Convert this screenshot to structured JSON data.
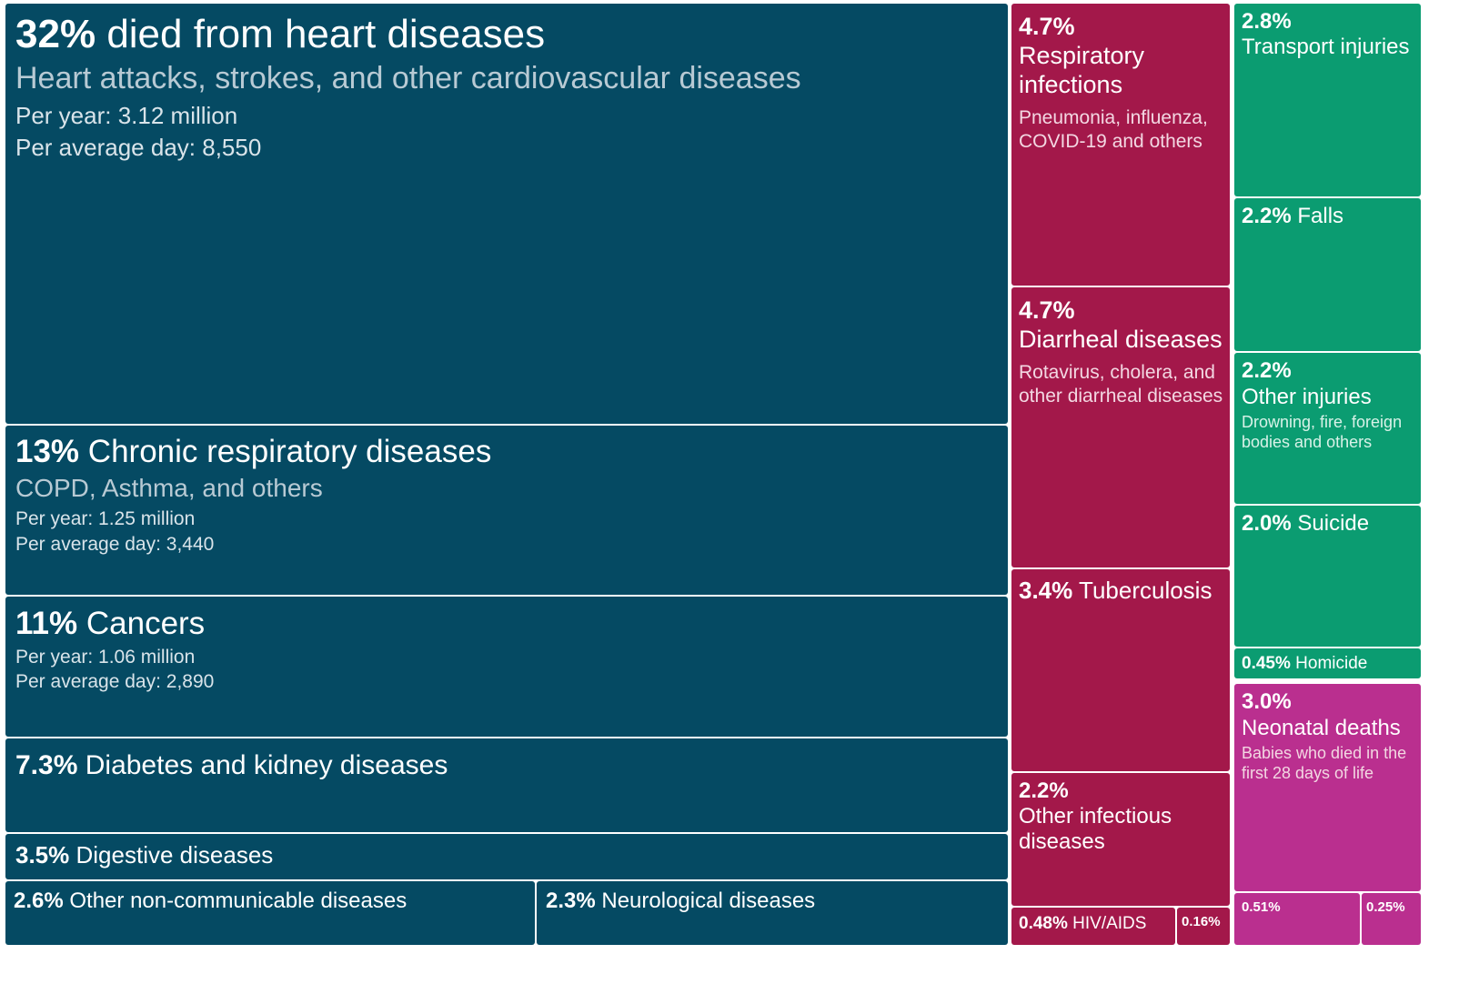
{
  "chart_data": {
    "type": "treemap",
    "title": "",
    "groups": [
      {
        "group": "non-communicable",
        "color": "#054a63",
        "items": [
          {
            "pct": "32%",
            "label": "died from heart diseases",
            "subtitle": "Heart attacks, strokes, and other cardiovascular diseases",
            "per_year": "Per year: 3.12 million",
            "per_day": "Per average day: 8,550"
          },
          {
            "pct": "13%",
            "label": "Chronic respiratory diseases",
            "subtitle": "COPD, Asthma, and others",
            "per_year": "Per year: 1.25 million",
            "per_day": "Per average day: 3,440"
          },
          {
            "pct": "11%",
            "label": "Cancers",
            "per_year": "Per year: 1.06 million",
            "per_day": "Per average day: 2,890"
          },
          {
            "pct": "7.3%",
            "label": "Diabetes and kidney diseases"
          },
          {
            "pct": "3.5%",
            "label": "Digestive diseases"
          },
          {
            "pct": "2.6%",
            "label": "Other non-communicable diseases"
          },
          {
            "pct": "2.3%",
            "label": "Neurological diseases"
          }
        ]
      },
      {
        "group": "infectious",
        "color": "#a3184a",
        "items": [
          {
            "pct": "4.7%",
            "label": "Respiratory infections",
            "subtitle": "Pneumonia, influenza, COVID-19 and others"
          },
          {
            "pct": "4.7%",
            "label": "Diarrheal diseases",
            "subtitle": "Rotavirus, cholera, and other diarrheal diseases"
          },
          {
            "pct": "3.4%",
            "label": "Tuberculosis"
          },
          {
            "pct": "2.2%",
            "label": "Other infectious diseases"
          },
          {
            "pct": "0.48%",
            "label": "HIV/AIDS"
          },
          {
            "pct": "0.16%",
            "label": ""
          }
        ]
      },
      {
        "group": "injuries",
        "color": "#0b9c71",
        "items": [
          {
            "pct": "2.8%",
            "label": "Transport injuries"
          },
          {
            "pct": "2.2%",
            "label": "Falls"
          },
          {
            "pct": "2.2%",
            "label": "Other injuries",
            "subtitle": "Drowning, fire, foreign bodies and others"
          },
          {
            "pct": "2.0%",
            "label": "Suicide"
          },
          {
            "pct": "0.45%",
            "label": "Homicide"
          }
        ]
      },
      {
        "group": "neonatal-and-other",
        "color": "#ba2f8f",
        "items": [
          {
            "pct": "3.0%",
            "label": "Neonatal deaths",
            "subtitle": "Babies who died in the first 28 days of life"
          },
          {
            "pct": "0.51%",
            "label": ""
          },
          {
            "pct": "0.25%",
            "label": ""
          }
        ]
      }
    ]
  }
}
